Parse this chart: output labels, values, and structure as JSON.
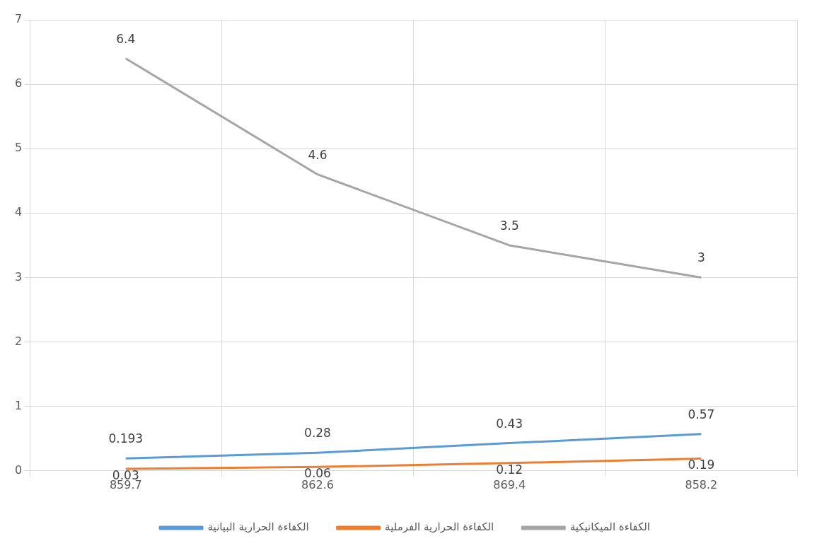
{
  "chart_data": {
    "type": "line",
    "categories": [
      "859.7",
      "862.6",
      "869.4",
      "858.2"
    ],
    "series": [
      {
        "name": "الكفاءة الحرارية البيانية",
        "color": "#5b9bd5",
        "values": [
          0.193,
          0.28,
          0.43,
          0.57
        ]
      },
      {
        "name": "الكفاءة الحرارية الفرملية",
        "color": "#ed7d31",
        "values": [
          0.03,
          0.06,
          0.12,
          0.19
        ]
      },
      {
        "name": "الكفاءة الميكانيكية",
        "color": "#a5a5a5",
        "values": [
          6.4,
          4.6,
          3.5,
          3
        ]
      }
    ],
    "ylim": [
      0,
      7
    ],
    "yticks": [
      0,
      1,
      2,
      3,
      4,
      5,
      6,
      7
    ],
    "grid": true,
    "legend": "bottom",
    "data_labels": true,
    "marker": "none",
    "line_style": "solid"
  }
}
